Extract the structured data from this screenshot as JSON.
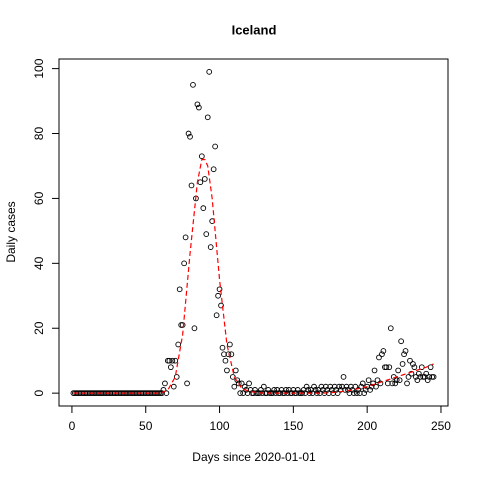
{
  "chart_data": {
    "type": "scatter",
    "title": "Iceland",
    "x_label": "Days since 2020-01-01",
    "y_label": "Daily cases",
    "xlim": [
      -8.76,
      254.76
    ],
    "ylim": [
      -3.96,
      102.96
    ],
    "xticks": [
      0,
      50,
      100,
      150,
      200,
      250
    ],
    "yticks": [
      0,
      20,
      40,
      60,
      80,
      100
    ],
    "series": [
      {
        "color": "#000000",
        "x": [
          1,
          2,
          3,
          4,
          5,
          6,
          7,
          8,
          9,
          10,
          11,
          12,
          13,
          14,
          15,
          16,
          17,
          18,
          19,
          20,
          21,
          22,
          23,
          24,
          25,
          26,
          27,
          28,
          29,
          30,
          31,
          32,
          33,
          34,
          35,
          36,
          37,
          38,
          39,
          40,
          41,
          42,
          43,
          44,
          45,
          46,
          47,
          48,
          49,
          50,
          51,
          52,
          53,
          54,
          55,
          56,
          57,
          58,
          59,
          60,
          61,
          62,
          63,
          64,
          65,
          66,
          67,
          68,
          69,
          70,
          71,
          72,
          73,
          74,
          75,
          76,
          77,
          78,
          79,
          80,
          81,
          82,
          83,
          84,
          85,
          86,
          87,
          88,
          89,
          90,
          91,
          92,
          93,
          94,
          95,
          96,
          97,
          98,
          99,
          100,
          101,
          102,
          103,
          104,
          105,
          106,
          107,
          108,
          109,
          110,
          111,
          112,
          113,
          114,
          115,
          116,
          117,
          118,
          119,
          120,
          121,
          122,
          123,
          124,
          125,
          126,
          127,
          128,
          129,
          130,
          131,
          132,
          133,
          134,
          135,
          136,
          137,
          138,
          139,
          140,
          141,
          142,
          143,
          144,
          145,
          146,
          147,
          148,
          149,
          150,
          151,
          152,
          153,
          154,
          155,
          156,
          157,
          158,
          159,
          160,
          161,
          162,
          163,
          164,
          165,
          166,
          167,
          168,
          169,
          170,
          171,
          172,
          173,
          174,
          175,
          176,
          177,
          178,
          179,
          180,
          181,
          182,
          183,
          184,
          185,
          186,
          187,
          188,
          189,
          190,
          191,
          192,
          193,
          194,
          195,
          196,
          197,
          198,
          199,
          200,
          201,
          202,
          203,
          204,
          205,
          206,
          207,
          208,
          209,
          210,
          211,
          212,
          213,
          214,
          215,
          216,
          217,
          218,
          219,
          220,
          221,
          222,
          223,
          224,
          225,
          226,
          227,
          228,
          229,
          230,
          231,
          232,
          233,
          234,
          235,
          236,
          237,
          238,
          239,
          240,
          241,
          242,
          243,
          244,
          245
        ],
        "values": [
          0,
          0,
          0,
          0,
          0,
          0,
          0,
          0,
          0,
          0,
          0,
          0,
          0,
          0,
          0,
          0,
          0,
          0,
          0,
          0,
          0,
          0,
          0,
          0,
          0,
          0,
          0,
          0,
          0,
          0,
          0,
          0,
          0,
          0,
          0,
          0,
          0,
          0,
          0,
          0,
          0,
          0,
          0,
          0,
          0,
          0,
          0,
          0,
          0,
          0,
          0,
          0,
          0,
          0,
          0,
          0,
          0,
          0,
          0,
          0,
          0,
          1,
          3,
          0,
          10,
          10,
          8,
          10,
          2,
          10,
          5,
          15,
          32,
          21,
          21,
          40,
          48,
          3,
          80,
          79,
          64,
          95,
          20,
          60,
          89,
          88,
          65,
          73,
          57,
          66,
          49,
          85,
          99,
          45,
          53,
          69,
          76,
          24,
          30,
          32,
          27,
          14,
          12,
          10,
          7,
          12,
          15,
          12,
          5,
          2,
          7,
          4,
          3,
          0,
          3,
          0,
          2,
          1,
          0,
          3,
          1,
          0,
          0,
          1,
          0,
          0,
          0,
          1,
          0,
          2,
          0,
          0,
          1,
          0,
          0,
          0,
          1,
          0,
          1,
          0,
          0,
          1,
          0,
          0,
          1,
          0,
          1,
          0,
          0,
          1,
          0,
          0,
          1,
          0,
          0,
          0,
          1,
          0,
          2,
          1,
          0,
          1,
          0,
          2,
          1,
          0,
          1,
          0,
          2,
          1,
          0,
          2,
          1,
          0,
          2,
          1,
          0,
          2,
          1,
          0,
          2,
          1,
          2,
          5,
          1,
          2,
          1,
          0,
          2,
          1,
          0,
          2,
          0,
          1,
          0,
          2,
          3,
          0,
          1,
          2,
          4,
          1,
          2,
          3,
          7,
          2,
          4,
          11,
          3,
          12,
          13,
          8,
          8,
          3,
          8,
          20,
          3,
          5,
          3,
          4,
          7,
          4,
          16,
          9,
          12,
          13,
          3,
          5,
          10,
          6,
          9,
          8,
          5,
          4,
          6,
          5,
          8,
          5,
          5,
          6,
          4,
          5,
          8,
          5,
          5
        ]
      },
      {
        "color": "#ff0000",
        "line": "dashed",
        "x": [
          1,
          10,
          20,
          30,
          40,
          50,
          55,
          60,
          65,
          70,
          75,
          80,
          85,
          88,
          90,
          92,
          95,
          100,
          105,
          110,
          115,
          120,
          130,
          140,
          150,
          160,
          170,
          180,
          190,
          200,
          210,
          220,
          230,
          240,
          245
        ],
        "values": [
          0,
          0,
          0,
          0,
          0,
          0,
          0,
          0,
          1,
          5,
          18,
          43,
          65,
          72,
          72,
          70,
          60,
          35,
          15,
          5,
          1.5,
          0.5,
          0,
          0,
          0,
          0,
          0,
          0.3,
          1,
          2,
          3.5,
          5,
          6.5,
          8,
          9
        ]
      }
    ]
  }
}
